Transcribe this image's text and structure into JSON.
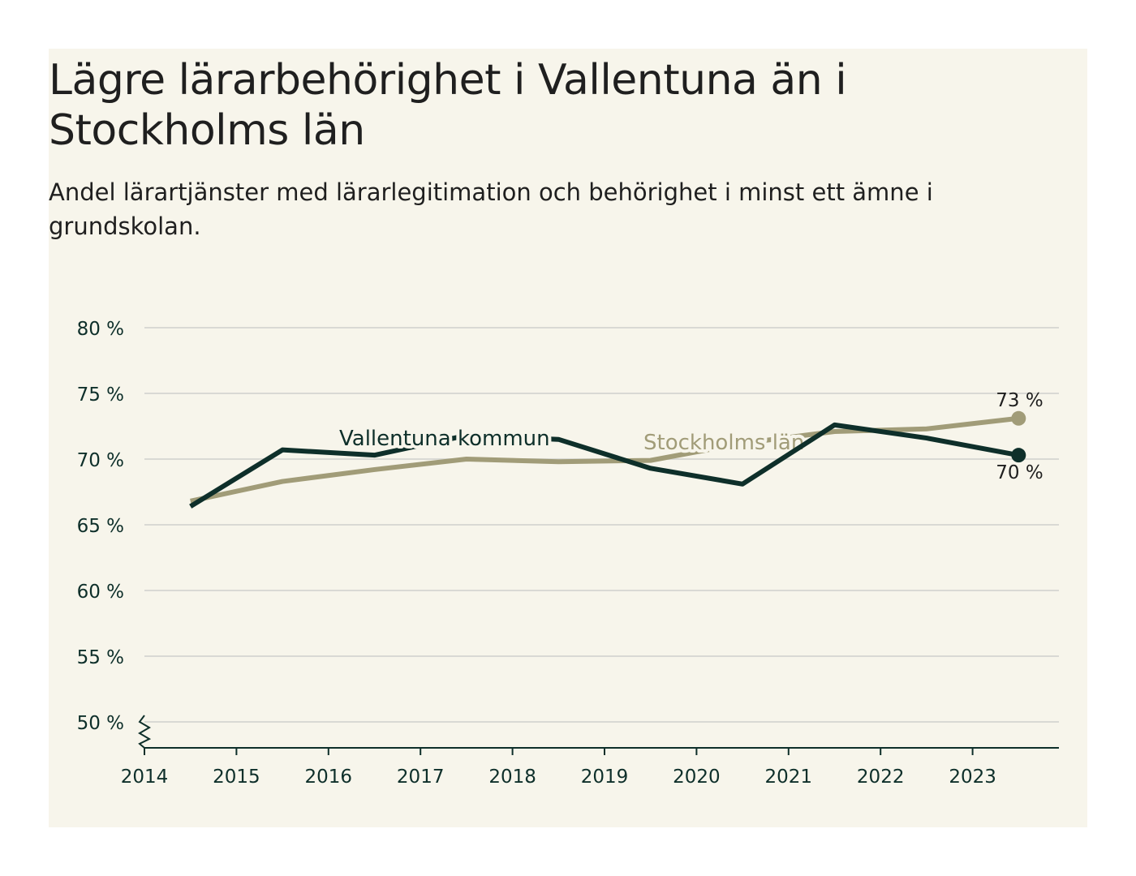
{
  "title": "Lägre lärarbehörighet i Vallentuna än i Stockholms län",
  "subtitle": "Andel lärartjänster med lärarlegitimation och behörighet i minst ett ämne i grundskolan.",
  "colors": {
    "background": "#f7f5eb",
    "vallentuna": "#0e2f2a",
    "stockholm": "#a19c78",
    "grid": "#d9d9d4",
    "text": "#1f1f1f",
    "axis_text": "#0e2f2a"
  },
  "chart_data": {
    "type": "line",
    "title": "Lägre lärarbehörighet i Vallentuna än i Stockholms län",
    "subtitle": "Andel lärartjänster med lärarlegitimation och behörighet i minst ett ämne i grundskolan.",
    "xlabel": "",
    "ylabel": "",
    "x_ticks": [
      "2014",
      "2015",
      "2016",
      "2017",
      "2018",
      "2019",
      "2020",
      "2021",
      "2022",
      "2023"
    ],
    "y_ticks": [
      50,
      55,
      60,
      65,
      70,
      75,
      80
    ],
    "y_tick_labels": [
      "50 %",
      "55 %",
      "60 %",
      "65 %",
      "70 %",
      "75 %",
      "80 %"
    ],
    "ylim": [
      48,
      80
    ],
    "axis_break": true,
    "x": [
      2014.5,
      2015.5,
      2016.5,
      2017.5,
      2018.5,
      2019.5,
      2020.5,
      2021.5,
      2022.5,
      2023.5
    ],
    "series": [
      {
        "name": "Stockholms län",
        "label": "Stockholms län",
        "values": [
          66.8,
          68.3,
          69.2,
          70.0,
          69.8,
          69.9,
          71.2,
          72.1,
          72.3,
          73.1
        ],
        "end_label": "73 %"
      },
      {
        "name": "Vallentuna kommun",
        "label": "Vallentuna kommun",
        "values": [
          66.4,
          70.7,
          70.3,
          71.8,
          71.5,
          69.3,
          68.1,
          72.6,
          71.6,
          70.3
        ],
        "end_label": "70 %"
      }
    ]
  }
}
